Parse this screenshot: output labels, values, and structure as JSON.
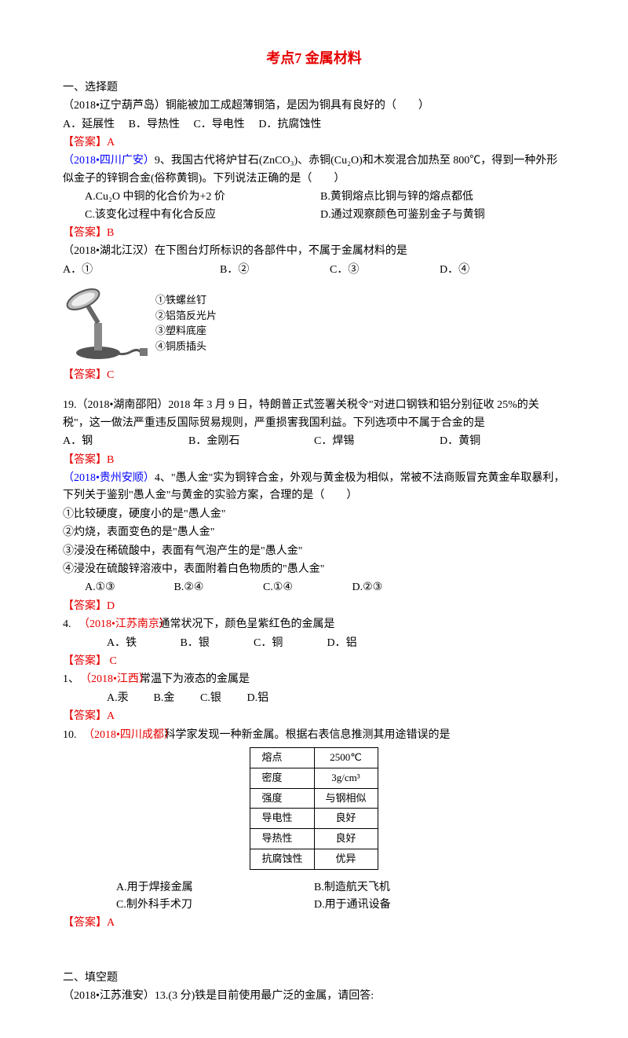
{
  "title": "考点7 金属材料",
  "sec1_header": "一、选择题",
  "q1": {
    "stem": "（2018•辽宁葫芦岛）铜能被加工成超薄铜箔，是因为铜具有良好的（　　）",
    "a": "A．延展性",
    "b": "B．导热性",
    "c": "C．导电性",
    "d": "D．抗腐蚀性",
    "ans": "【答案】A"
  },
  "q2": {
    "src": "（2018•四川广安）",
    "stem": "9、我国古代将炉甘石(ZnCO₃)、赤铜(Cu₂O)和木炭混合加热至 800℃，得到一种外形似金子的锌铜合金(俗称黄铜)。下列说法正确的是（　　）",
    "a": "A.Cu₂O 中铜的化合价为+2 价",
    "b": "B.黄铜熔点比铜与锌的熔点都低",
    "c": "C.该变化过程中有化合反应",
    "d": "D.通过观察颜色可鉴别金子与黄铜",
    "ans": "【答案】B"
  },
  "q3": {
    "stem": "（2018•湖北江汉）在下图台灯所标识的各部件中，不属于金属材料的是",
    "a": "A．①",
    "b": "B．②",
    "c": "C．③",
    "d": "D．④",
    "l1": "①铁螺丝钉",
    "l2": "②铝箔反光片",
    "l3": "③塑料底座",
    "l4": "④铜质插头",
    "ans": "【答案】C"
  },
  "q4": {
    "stem": "19.（2018•湖南邵阳）2018 年 3 月 9 日，特朗普正式签署关税令\"对进口钢铁和铝分别征收 25%的关税\"，这一做法严重违反国际贸易规则，严重损害我国利益。下列选项中不属于合金的是",
    "a": "A．钢",
    "b": "B．金刚石",
    "c": "C．焊锡",
    "d": "D．黄铜",
    "ans": "【答案】B"
  },
  "q5": {
    "src": "（2018•贵州安顺）",
    "stem1": "4、\"愚人金\"实为铜锌合金，外观与黄金极为相似，常被不法商贩冒充黄金牟取暴利，下列关于鉴别\"愚人金\"与黄金的实验方案，合理的是（　　）",
    "l1": "①比较硬度，硬度小的是\"愚人金\"",
    "l2": "②灼烧，表面变色的是\"愚人金\"",
    "l3": "③浸没在稀硫酸中，表面有气泡产生的是\"愚人金\"",
    "l4": "④浸没在硫酸锌溶液中，表面附着白色物质的\"愚人金\"",
    "a": "A.①③",
    "b": "B.②④",
    "c": "C.①④",
    "d": "D.②③",
    "ans": "【答案】D"
  },
  "q6": {
    "src": "（2018•江苏南京）",
    "stem": "4.　　　　　　　　通常状况下，颜色呈紫红色的金属是",
    "a": "A．铁",
    "b": "B．银",
    "c": "C．铜",
    "d": "D．铝",
    "ans": "【答案】 C"
  },
  "q7": {
    "src": "（2018•江西）",
    "stem": "1、　　　　　　常温下为液态的金属是",
    "a": "A.汞",
    "b": "B.金",
    "c": "C.银",
    "d": "D.铝",
    "ans": "【答案】A"
  },
  "q8": {
    "src": "（2018•四川成都）",
    "stem": "10.　　　　　　　　科学家发现一种新金属。根据右表信息推测其用途错误的是",
    "table": {
      "rows": [
        [
          "熔点",
          "2500℃"
        ],
        [
          "密度",
          "3g/cm³"
        ],
        [
          "强度",
          "与钢相似"
        ],
        [
          "导电性",
          "良好"
        ],
        [
          "导热性",
          "良好"
        ],
        [
          "抗腐蚀性",
          "优异"
        ]
      ]
    },
    "a": "A.用于焊接金属",
    "b": "B.制造航天飞机",
    "c": "C.制外科手术刀",
    "d": "D.用于通讯设备",
    "ans": "【答案】A"
  },
  "sec2_header": "二、填空题",
  "q9": {
    "stem": "（2018•江苏淮安）13.(3 分)铁是目前使用最广泛的金属，请回答:"
  }
}
